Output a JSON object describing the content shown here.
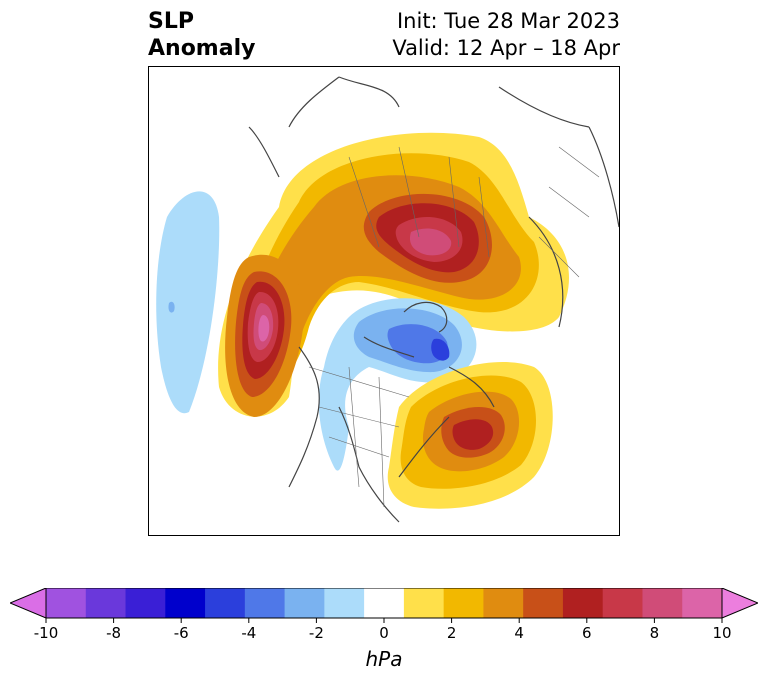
{
  "header": {
    "title_line1": "SLP",
    "title_line2": "Anomaly",
    "init_text": "Init: Tue 28 Mar 2023",
    "valid_text": "Valid: 12 Apr – 18 Apr"
  },
  "colorbar": {
    "label": "hPa",
    "tick_labels": [
      "-10",
      "-8",
      "-6",
      "-4",
      "-2",
      "0",
      "2",
      "4",
      "6",
      "8",
      "10"
    ],
    "colors": [
      "#da6ee6",
      "#a052e0",
      "#6a38db",
      "#3a1fd6",
      "#0000cc",
      "#2b3fdc",
      "#4f78e8",
      "#7ab2f0",
      "#acdcfa",
      "#ffffff",
      "#ffe04a",
      "#f2b800",
      "#e08c10",
      "#c85018",
      "#b02020",
      "#c83848",
      "#d04c78",
      "#dc64a8",
      "#ec7ede"
    ],
    "extend": "both"
  }
}
